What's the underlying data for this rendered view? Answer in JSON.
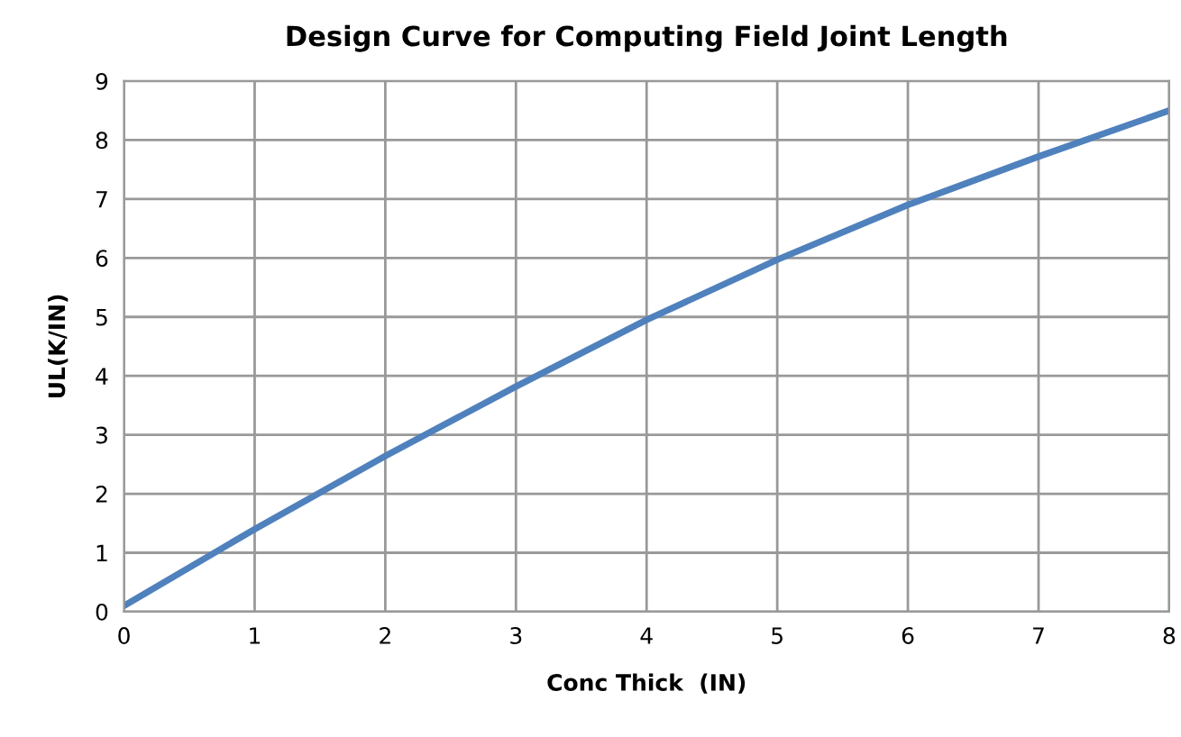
{
  "chart_data": {
    "type": "line",
    "title": "Design Curve for Computing Field Joint Length",
    "xlabel": "Conc Thick  (IN)",
    "ylabel": "UL(K/IN)",
    "series": [
      {
        "color": "#4f81bd",
        "x": [
          0,
          1,
          2,
          3,
          4,
          5,
          6,
          7,
          8
        ],
        "values": [
          0.1,
          1.4,
          2.64,
          3.82,
          4.95,
          5.97,
          6.9,
          7.72,
          8.5
        ]
      }
    ],
    "xlim": [
      0,
      8
    ],
    "ylim": [
      0,
      9
    ],
    "xticks": [
      0,
      1,
      2,
      3,
      4,
      5,
      6,
      7,
      8
    ],
    "yticks": [
      0,
      1,
      2,
      3,
      4,
      5,
      6,
      7,
      8,
      9
    ],
    "grid": true
  }
}
